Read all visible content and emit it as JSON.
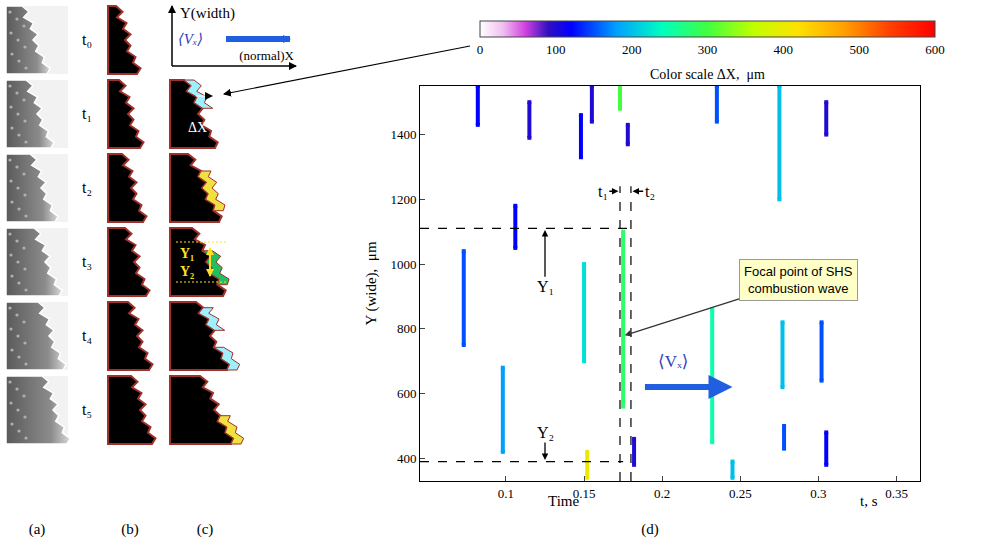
{
  "figure": {
    "panel_labels": [
      "(a)",
      "(b)",
      "(c)",
      "(d)"
    ],
    "time_labels": [
      "t₀",
      "t₁",
      "t₂",
      "t₃",
      "t₄",
      "t₅"
    ],
    "axes_sketch": {
      "y_label": "Y(width)",
      "x_label": "(normal)X",
      "velocity": "⟨Vₓ⟩"
    },
    "frame_labels": {
      "dx": "ΔX",
      "y1": "Y₁",
      "y2": "Y₂"
    }
  },
  "chart_data": {
    "type": "scatter",
    "x_label": "Time",
    "x_unit_label": "t, s",
    "y_label": "Y (wide),  μm",
    "xlim": [
      0.045,
      0.365
    ],
    "xticks": [
      0.1,
      0.15,
      0.2,
      0.25,
      0.3,
      0.35
    ],
    "ylim": [
      330,
      1550
    ],
    "yticks": [
      400,
      600,
      800,
      1000,
      1200,
      1400
    ],
    "grid": false,
    "color_bar": {
      "title": "Color scale ΔX,  μm",
      "range": [
        0,
        600
      ],
      "ticks": [
        0,
        100,
        200,
        300,
        400,
        500,
        600
      ]
    },
    "streaks": [
      {
        "t": 0.073,
        "y_start": 750,
        "y_end": 1040,
        "dx": 150
      },
      {
        "t": 0.082,
        "y_start": 1430,
        "y_end": 1550,
        "dx": 120
      },
      {
        "t": 0.098,
        "y_start": 420,
        "y_end": 680,
        "dx": 180
      },
      {
        "t": 0.106,
        "y_start": 1050,
        "y_end": 1180,
        "dx": 120
      },
      {
        "t": 0.115,
        "y_start": 1390,
        "y_end": 1500,
        "dx": 100
      },
      {
        "t": 0.148,
        "y_start": 1330,
        "y_end": 1460,
        "dx": 120
      },
      {
        "t": 0.15,
        "y_start": 700,
        "y_end": 1000,
        "dx": 220
      },
      {
        "t": 0.152,
        "y_start": 340,
        "y_end": 420,
        "dx": 400
      },
      {
        "t": 0.155,
        "y_start": 1440,
        "y_end": 1550,
        "dx": 100
      },
      {
        "t": 0.173,
        "y_start": 1480,
        "y_end": 1550,
        "dx": 300
      },
      {
        "t": 0.175,
        "y_start": 560,
        "y_end": 1100,
        "dx": 280
      },
      {
        "t": 0.178,
        "y_start": 1370,
        "y_end": 1430,
        "dx": 100
      },
      {
        "t": 0.182,
        "y_start": 380,
        "y_end": 460,
        "dx": 100
      },
      {
        "t": 0.232,
        "y_start": 450,
        "y_end": 860,
        "dx": 250
      },
      {
        "t": 0.235,
        "y_start": 1440,
        "y_end": 1550,
        "dx": 150
      },
      {
        "t": 0.245,
        "y_start": 340,
        "y_end": 390,
        "dx": 200
      },
      {
        "t": 0.275,
        "y_start": 1200,
        "y_end": 1550,
        "dx": 200
      },
      {
        "t": 0.277,
        "y_start": 620,
        "y_end": 820,
        "dx": 200
      },
      {
        "t": 0.278,
        "y_start": 430,
        "y_end": 500,
        "dx": 150
      },
      {
        "t": 0.302,
        "y_start": 640,
        "y_end": 820,
        "dx": 150
      },
      {
        "t": 0.305,
        "y_start": 1400,
        "y_end": 1500,
        "dx": 100
      },
      {
        "t": 0.305,
        "y_start": 380,
        "y_end": 480,
        "dx": 120
      }
    ],
    "dashed_lines": [
      {
        "x": [
          0.045,
          0.18
        ],
        "y": [
          1110,
          1110
        ]
      },
      {
        "x": [
          0.045,
          0.175
        ],
        "y": [
          390,
          390
        ]
      },
      {
        "x": [
          0.173,
          0.173
        ],
        "y": [
          330,
          1240
        ]
      },
      {
        "x": [
          0.18,
          0.18
        ],
        "y": [
          330,
          1240
        ]
      }
    ],
    "annotations": [
      {
        "text": "t₁",
        "x": 0.162,
        "y": 1225,
        "arrow_to": [
          0.172,
          1225
        ]
      },
      {
        "text": "t₂",
        "x": 0.192,
        "y": 1225,
        "arrow_to": [
          0.181,
          1225
        ]
      },
      {
        "text": "Y₁",
        "x": 0.125,
        "y": 930,
        "arrow_to": [
          0.125,
          1105
        ]
      },
      {
        "text": "Y₂",
        "x": 0.125,
        "y": 480,
        "arrow_to": [
          0.125,
          395
        ]
      }
    ],
    "callout": {
      "text": "Focal point of SHS combustion wave",
      "x": 0.287,
      "y": 950,
      "arrow_to": [
        0.176,
        780
      ]
    },
    "velocity": {
      "text": "⟨Vₓ⟩",
      "x": 0.207,
      "y": 700,
      "arrow_from": [
        0.188,
        620
      ],
      "arrow_to": [
        0.245,
        620
      ]
    }
  }
}
